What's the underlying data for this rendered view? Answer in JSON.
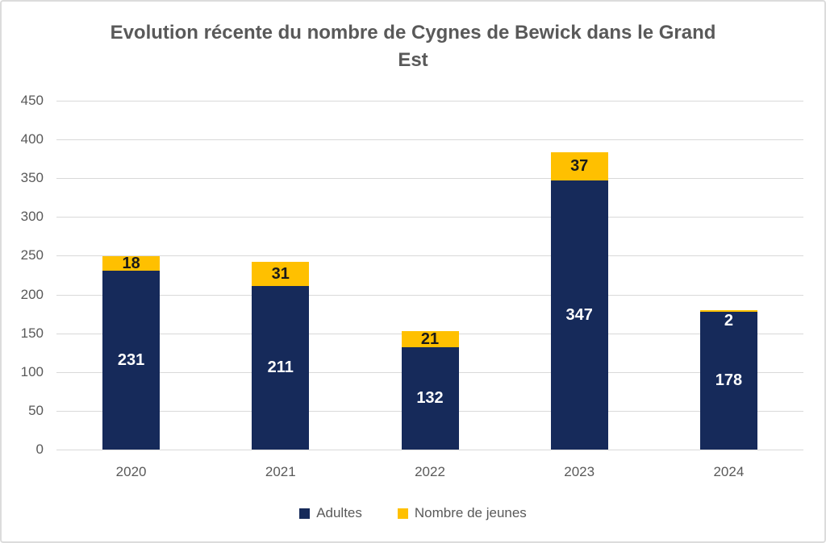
{
  "title_lines": [
    "Evolution récente du nombre de Cygnes de Bewick dans le Grand",
    "Est"
  ],
  "colors": {
    "adultes": "#162a5a",
    "jeunes": "#ffc000",
    "grid": "#d9d9d9",
    "axis_text": "#595959",
    "label_on_navy": "#ffffff",
    "label_on_yellow": "#1a1a1a",
    "border": "#dcdcdc"
  },
  "chart_data": {
    "type": "bar",
    "stacked": true,
    "title": "Evolution récente du nombre de Cygnes de Bewick dans le Grand Est",
    "categories": [
      "2020",
      "2021",
      "2022",
      "2023",
      "2024"
    ],
    "series": [
      {
        "name": "Adultes",
        "color": "#162a5a",
        "values": [
          231,
          211,
          132,
          347,
          178
        ]
      },
      {
        "name": "Nombre de jeunes",
        "color": "#ffc000",
        "values": [
          18,
          31,
          21,
          37,
          2
        ]
      }
    ],
    "yticks": [
      0,
      50,
      100,
      150,
      200,
      250,
      300,
      350,
      400,
      450
    ],
    "ylim": [
      0,
      450
    ],
    "ytick_step": 50,
    "xlabel": "",
    "ylabel": "",
    "grid": true,
    "legend_position": "bottom"
  }
}
